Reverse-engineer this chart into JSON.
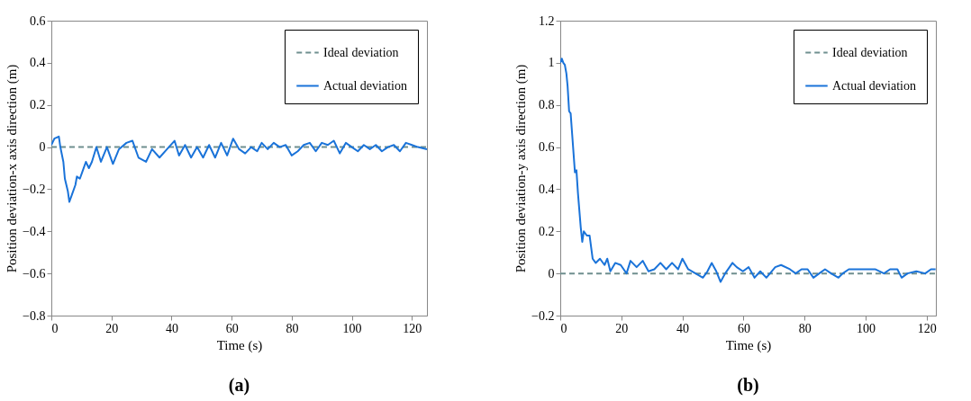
{
  "chart_data": [
    {
      "type": "line",
      "xlabel": "Time (s)",
      "ylabel": "Position deviation-x axis direction (m)",
      "annotations": [
        "(a)"
      ],
      "xlim": [
        0,
        125
      ],
      "ylim": [
        -0.8,
        0.6
      ],
      "xticks": [
        0,
        20,
        40,
        60,
        80,
        100,
        120
      ],
      "yticks": [
        -0.8,
        -0.6,
        -0.4,
        -0.2,
        0,
        0.2,
        0.4,
        0.6
      ],
      "grid": false,
      "legend": "top right",
      "series": [
        {
          "name": "Ideal deviation",
          "color": "#6f8f8f",
          "line_style": "dashed",
          "x": [
            0,
            125
          ],
          "values": [
            0,
            0
          ]
        },
        {
          "name": "Actual deviation",
          "color": "#1a73d9",
          "line_style": "solid",
          "x": [
            0,
            1,
            2.5,
            3,
            4,
            4.5,
            5.5,
            6,
            7,
            8,
            8.5,
            9.5,
            10.5,
            11.5,
            12.5,
            13.5,
            15,
            16.5,
            18.5,
            20.5,
            22.5,
            25,
            27,
            29,
            31.5,
            33.5,
            36,
            38.5,
            41,
            42.5,
            44.5,
            46.5,
            48.5,
            50.5,
            52.5,
            54.5,
            56.5,
            58.5,
            60.5,
            62.5,
            64.5,
            66.5,
            68.5,
            70,
            72,
            74,
            76,
            78,
            80,
            82,
            84,
            86,
            88,
            90,
            92,
            94,
            96,
            98,
            100,
            102,
            104,
            106,
            108,
            110,
            112,
            114,
            116,
            118,
            120,
            122,
            125
          ],
          "values": [
            0.01,
            0.04,
            0.05,
            0,
            -0.07,
            -0.15,
            -0.21,
            -0.26,
            -0.22,
            -0.18,
            -0.14,
            -0.15,
            -0.11,
            -0.07,
            -0.1,
            -0.07,
            0,
            -0.07,
            0,
            -0.08,
            -0.01,
            0.02,
            0.03,
            -0.05,
            -0.07,
            -0.01,
            -0.05,
            -0.01,
            0.03,
            -0.04,
            0.01,
            -0.05,
            0,
            -0.05,
            0.01,
            -0.05,
            0.02,
            -0.04,
            0.04,
            -0.01,
            -0.03,
            0,
            -0.02,
            0.02,
            -0.01,
            0.02,
            0,
            0.01,
            -0.04,
            -0.02,
            0.01,
            0.02,
            -0.02,
            0.02,
            0.01,
            0.03,
            -0.03,
            0.02,
            0,
            -0.02,
            0.01,
            -0.01,
            0.01,
            -0.02,
            0,
            0.01,
            -0.02,
            0.02,
            0.01,
            0,
            -0.01
          ]
        }
      ]
    },
    {
      "type": "line",
      "xlabel": "Time (s)",
      "ylabel": "Position deviation-y axis direction (m)",
      "annotations": [
        "(b)"
      ],
      "xlim": [
        0,
        123
      ],
      "ylim": [
        -0.2,
        1.2
      ],
      "xticks": [
        0,
        20,
        40,
        60,
        80,
        100,
        120
      ],
      "yticks": [
        -0.2,
        0,
        0.2,
        0.4,
        0.6,
        0.8,
        1,
        1.2
      ],
      "grid": false,
      "legend": "top right",
      "series": [
        {
          "name": "Ideal deviation",
          "color": "#6f8f8f",
          "line_style": "dashed",
          "x": [
            0,
            123
          ],
          "values": [
            0,
            0
          ]
        },
        {
          "name": "Actual deviation",
          "color": "#1a73d9",
          "line_style": "solid",
          "x": [
            0,
            0.5,
            1,
            1.5,
            2,
            2.4,
            2.9,
            3.4,
            3.9,
            4.8,
            5.3,
            5.8,
            6.7,
            7.2,
            7.7,
            8.7,
            9.6,
            10.6,
            11.6,
            13,
            14.5,
            15.4,
            16.4,
            18,
            19.8,
            21.7,
            23,
            25,
            27,
            28.9,
            30.8,
            32.8,
            34.7,
            36.6,
            38.6,
            40,
            41.9,
            44.3,
            46.7,
            48.2,
            49.6,
            51.1,
            52.5,
            54,
            56.4,
            57.8,
            59.8,
            61.7,
            63.6,
            65.5,
            67.5,
            70.4,
            72.3,
            75.2,
            77.1,
            79,
            81,
            82.9,
            84.8,
            86.7,
            88.7,
            91.1,
            92.5,
            94.5,
            97.3,
            100.2,
            103.1,
            106,
            108,
            110.4,
            111.8,
            113.7,
            116.6,
            119.5,
            121.4,
            122.9
          ],
          "values": [
            1.0,
            1.02,
            1.0,
            0.99,
            0.95,
            0.89,
            0.77,
            0.76,
            0.66,
            0.48,
            0.49,
            0.38,
            0.22,
            0.15,
            0.2,
            0.18,
            0.18,
            0.07,
            0.05,
            0.07,
            0.04,
            0.07,
            0.01,
            0.05,
            0.04,
            0,
            0.06,
            0.03,
            0.06,
            0.01,
            0.02,
            0.05,
            0.02,
            0.05,
            0.02,
            0.07,
            0.02,
            0,
            -0.02,
            0.01,
            0.05,
            0.01,
            -0.04,
            0,
            0.05,
            0.03,
            0.01,
            0.03,
            -0.02,
            0.01,
            -0.02,
            0.03,
            0.04,
            0.02,
            0,
            0.02,
            0.02,
            -0.02,
            0,
            0.02,
            0,
            -0.02,
            0,
            0.02,
            0.02,
            0.02,
            0.02,
            0,
            0.02,
            0.02,
            -0.02,
            0,
            0.01,
            0,
            0.02,
            0.02
          ]
        }
      ]
    }
  ]
}
